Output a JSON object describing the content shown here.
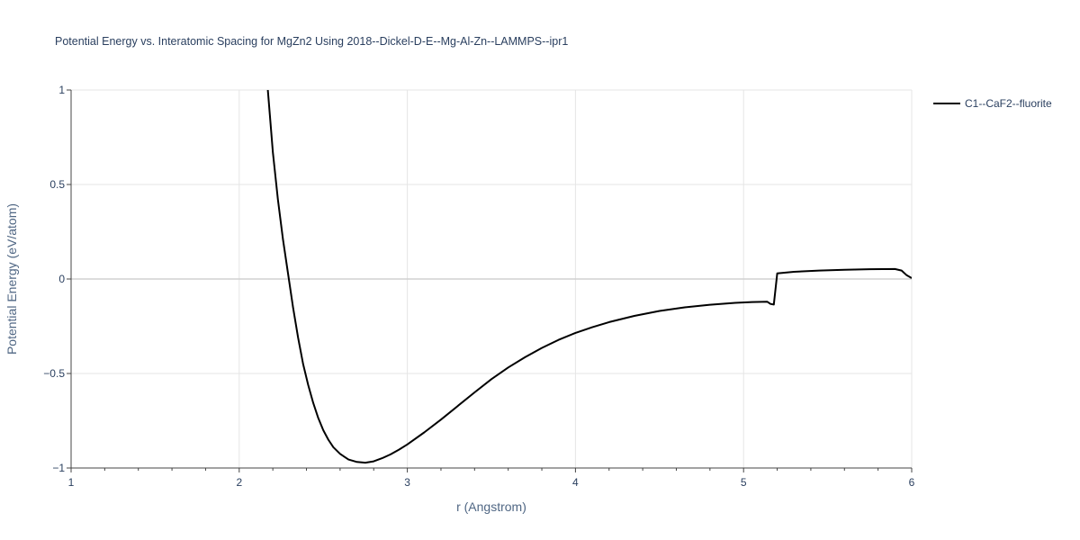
{
  "chart_data": {
    "type": "line",
    "title": "Potential Energy vs. Interatomic Spacing for MgZn2 Using 2018--Dickel-D-E--Mg-Al-Zn--LAMMPS--ipr1",
    "xlabel": "r (Angstrom)",
    "ylabel": "Potential Energy (eV/atom)",
    "xlim": [
      1,
      6
    ],
    "ylim": [
      -1,
      1
    ],
    "x_ticks": [
      1,
      2,
      3,
      4,
      5,
      6
    ],
    "x_tick_labels": [
      "1",
      "2",
      "3",
      "4",
      "5",
      "6"
    ],
    "y_ticks": [
      -1,
      -0.5,
      0,
      0.5,
      1
    ],
    "y_tick_labels": [
      "−1",
      "−0.5",
      "0",
      "0.5",
      "1"
    ],
    "grid": true,
    "legend_position": "top-right",
    "series": [
      {
        "name": "C1--CaF2--fluorite",
        "color": "#000000",
        "x": [
          2.17,
          2.2,
          2.23,
          2.26,
          2.29,
          2.32,
          2.35,
          2.38,
          2.41,
          2.44,
          2.47,
          2.5,
          2.53,
          2.56,
          2.6,
          2.65,
          2.7,
          2.75,
          2.8,
          2.85,
          2.9,
          2.95,
          3.0,
          3.1,
          3.2,
          3.3,
          3.4,
          3.5,
          3.6,
          3.7,
          3.8,
          3.9,
          4.0,
          4.1,
          4.2,
          4.35,
          4.5,
          4.65,
          4.8,
          4.95,
          5.05,
          5.14,
          5.16,
          5.18,
          5.2,
          5.3,
          5.45,
          5.6,
          5.75,
          5.9,
          5.94,
          5.97,
          6.0
        ],
        "y": [
          1.0,
          0.67,
          0.42,
          0.21,
          0.03,
          -0.15,
          -0.31,
          -0.45,
          -0.56,
          -0.655,
          -0.735,
          -0.8,
          -0.85,
          -0.89,
          -0.925,
          -0.955,
          -0.968,
          -0.972,
          -0.965,
          -0.948,
          -0.928,
          -0.903,
          -0.875,
          -0.812,
          -0.744,
          -0.672,
          -0.6,
          -0.53,
          -0.468,
          -0.414,
          -0.365,
          -0.322,
          -0.285,
          -0.255,
          -0.228,
          -0.195,
          -0.169,
          -0.15,
          -0.136,
          -0.126,
          -0.122,
          -0.12,
          -0.132,
          -0.135,
          0.03,
          0.038,
          0.045,
          0.049,
          0.052,
          0.053,
          0.045,
          0.02,
          0.005
        ]
      }
    ]
  }
}
